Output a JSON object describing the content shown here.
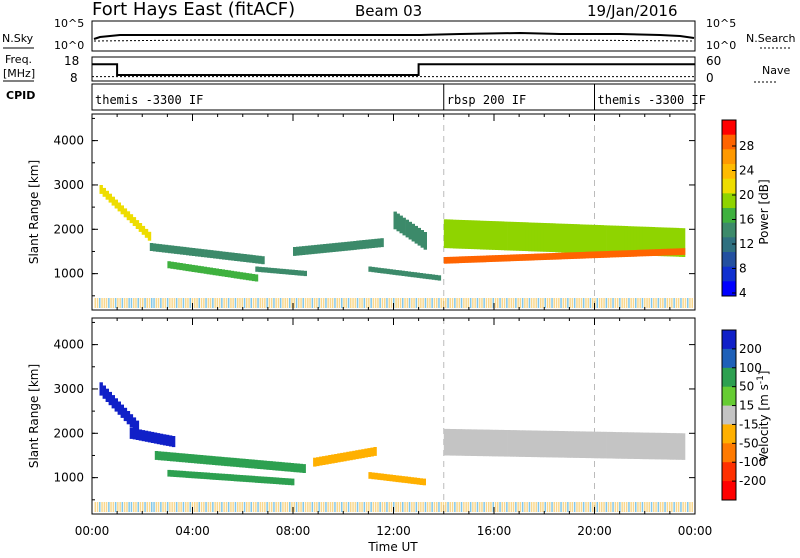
{
  "header": {
    "station": "Fort Hays East (fitACF)",
    "beam": "Beam 03",
    "date": "19/Jan/2016"
  },
  "nsky_panel": {
    "left_label": "N.Sky",
    "right_label": "N.Search",
    "left_ticks": [
      "10^5",
      "10^0"
    ],
    "right_ticks": [
      "10^5",
      "10^0"
    ]
  },
  "freq_panel": {
    "left_label_1": "Freq.",
    "left_label_2": "[MHz]",
    "left_ticks": [
      "18",
      "8"
    ],
    "right_label": "Nave",
    "right_ticks": [
      "60",
      "0"
    ],
    "freq_segments": [
      {
        "start_hr": 0.0,
        "end_hr": 1.0,
        "mhz": 15.0
      },
      {
        "start_hr": 1.0,
        "end_hr": 13.0,
        "mhz": 10.5
      },
      {
        "start_hr": 13.0,
        "end_hr": 24.0,
        "mhz": 15.0
      }
    ],
    "nave_level": 11
  },
  "cpid": {
    "label": "CPID",
    "segments": [
      {
        "label": "themis -3300 IF",
        "start_hr": 0.0
      },
      {
        "label": "rbsp 200 IF",
        "start_hr": 14.0
      },
      {
        "label": "themis -3300 IF",
        "start_hr": 20.0
      }
    ]
  },
  "power_panel": {
    "ylabel": "Slant Range [km]",
    "cbar_label": "Power [dB]",
    "cbar_ticks": [
      "28",
      "24",
      "20",
      "16",
      "12",
      "8",
      "4"
    ],
    "cbar_colors": [
      "#ff0000",
      "#ff6400",
      "#ff9900",
      "#ffbb00",
      "#eedd00",
      "#8fd400",
      "#3fb13f",
      "#3c8a6a",
      "#2f7080",
      "#2350a0",
      "#1030d0",
      "#0000ff"
    ]
  },
  "velocity_panel": {
    "ylabel": "Slant Range [km]",
    "cbar_label": "Velocity [m s^-1]",
    "cbar_ticks": [
      "200",
      "100",
      "50",
      "15",
      "-15",
      "-50",
      "-100",
      "-200"
    ],
    "cbar_colors": [
      "#1020c8",
      "#1e60b8",
      "#2da050",
      "#66cc33",
      "#c4c4c4",
      "#ffb000",
      "#ff7a00",
      "#ff3000",
      "#ff0000"
    ]
  },
  "x_axis": {
    "label": "Time UT",
    "ticks": [
      "00:00",
      "04:00",
      "08:00",
      "12:00",
      "16:00",
      "20:00",
      "00:00"
    ]
  },
  "chart_data": [
    {
      "type": "heatmap",
      "title": "Power",
      "xlabel": "Time UT",
      "ylabel": "Slant Range [km]",
      "xlim": [
        0,
        24
      ],
      "ylim": [
        180,
        4600
      ],
      "yticks": [
        1000,
        2000,
        3000,
        4000
      ],
      "color_label": "Power [dB]",
      "color_range": [
        0,
        30
      ],
      "echo_bands": [
        {
          "t_start": 0.3,
          "t_end": 2.3,
          "r_start": 2900,
          "r_end": 1800,
          "width_km": 200,
          "power_db": 18
        },
        {
          "t_start": 2.3,
          "t_end": 6.8,
          "r_start": 1600,
          "r_end": 1300,
          "width_km": 180,
          "power_db": 12
        },
        {
          "t_start": 3.0,
          "t_end": 6.5,
          "r_start": 1200,
          "r_end": 900,
          "width_km": 160,
          "power_db": 14
        },
        {
          "t_start": 6.5,
          "t_end": 8.5,
          "r_start": 1100,
          "r_end": 1000,
          "width_km": 120,
          "power_db": 12
        },
        {
          "t_start": 8.0,
          "t_end": 11.5,
          "r_start": 1500,
          "r_end": 1700,
          "width_km": 200,
          "power_db": 12
        },
        {
          "t_start": 12.0,
          "t_end": 13.3,
          "r_start": 2200,
          "r_end": 1700,
          "width_km": 400,
          "power_db": 12
        },
        {
          "t_start": 11.0,
          "t_end": 13.8,
          "r_start": 1100,
          "r_end": 900,
          "width_km": 120,
          "power_db": 10
        },
        {
          "t_start": 14.0,
          "t_end": 23.5,
          "r_start": 1900,
          "r_end": 1700,
          "width_km": 650,
          "power_db": 16
        },
        {
          "t_start": 14.0,
          "t_end": 23.5,
          "r_start": 1300,
          "r_end": 1500,
          "width_km": 150,
          "power_db": 26
        }
      ]
    },
    {
      "type": "heatmap",
      "title": "Velocity",
      "xlabel": "Time UT",
      "ylabel": "Slant Range [km]",
      "xlim": [
        0,
        24
      ],
      "ylim": [
        180,
        4600
      ],
      "yticks": [
        1000,
        2000,
        3000,
        4000
      ],
      "color_label": "Velocity [m s^-1]",
      "color_range": [
        -200,
        200
      ],
      "echo_bands": [
        {
          "t_start": 0.3,
          "t_end": 1.8,
          "r_start": 3000,
          "r_end": 2100,
          "width_km": 300,
          "velocity": 150
        },
        {
          "t_start": 1.5,
          "t_end": 3.3,
          "r_start": 2000,
          "r_end": 1800,
          "width_km": 250,
          "velocity": 200
        },
        {
          "t_start": 2.5,
          "t_end": 8.5,
          "r_start": 1500,
          "r_end": 1200,
          "width_km": 200,
          "velocity": 40
        },
        {
          "t_start": 3.0,
          "t_end": 8.0,
          "r_start": 1100,
          "r_end": 900,
          "width_km": 150,
          "velocity": 40
        },
        {
          "t_start": 8.8,
          "t_end": 11.3,
          "r_start": 1350,
          "r_end": 1600,
          "width_km": 200,
          "velocity": -40
        },
        {
          "t_start": 11.0,
          "t_end": 13.2,
          "r_start": 1050,
          "r_end": 900,
          "width_km": 150,
          "velocity": -40
        },
        {
          "t_start": 14.0,
          "t_end": 23.5,
          "r_start": 1800,
          "r_end": 1700,
          "width_km": 600,
          "velocity": 0
        }
      ]
    }
  ]
}
